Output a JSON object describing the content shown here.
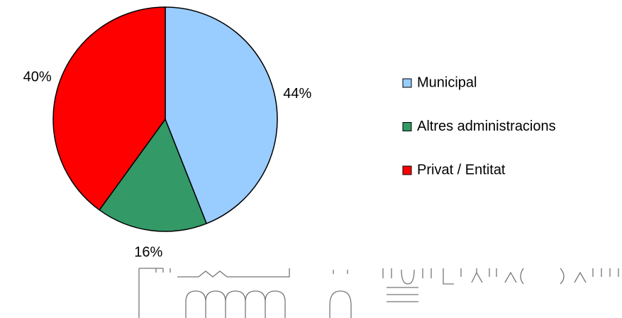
{
  "chart_data": {
    "type": "pie",
    "categories": [
      "Municipal",
      "Altres administracions",
      "Privat / Entitat"
    ],
    "values": [
      44,
      16,
      40
    ],
    "value_labels": [
      "44%",
      "16%",
      "40%"
    ],
    "colors": [
      "#99ccff",
      "#339966",
      "#ff0000"
    ],
    "legend": "right"
  }
}
